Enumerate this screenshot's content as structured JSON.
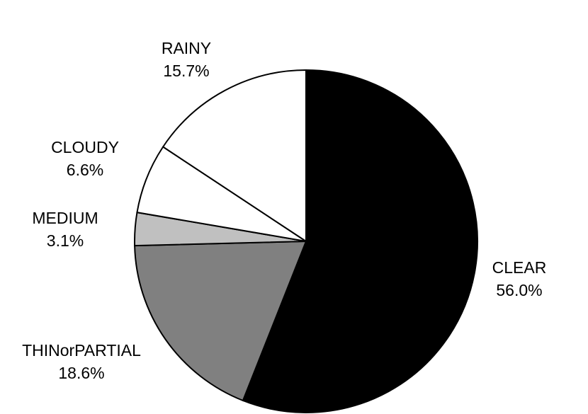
{
  "chart_data": {
    "type": "pie",
    "categories": [
      "CLEAR",
      "THINorPARTIAL",
      "MEDIUM",
      "CLOUDY",
      "RAINY"
    ],
    "values": [
      56.0,
      18.6,
      3.1,
      6.6,
      15.7
    ],
    "value_labels": [
      "56.0%",
      "18.6%",
      "3.1%",
      "6.6%",
      "15.7%"
    ],
    "colors": [
      "#000000",
      "#808080",
      "#c0c0c0",
      "#ffffff",
      "#ffffff"
    ]
  }
}
